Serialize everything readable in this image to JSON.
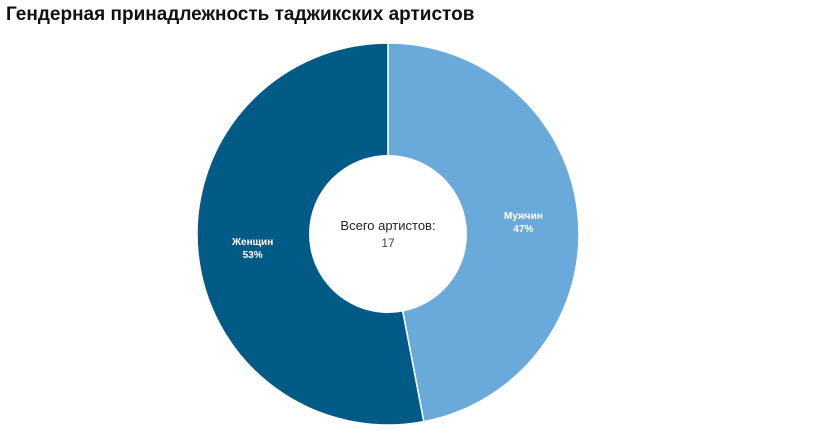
{
  "chart_data": {
    "type": "pie",
    "title": "Гендерная принадлежность таджикских артистов",
    "donut": true,
    "center_label": "Всего артистов:",
    "center_value": "17",
    "slices": [
      {
        "label": "Мужчин",
        "percent_label": "47%",
        "value": 47,
        "color": "#6aaadb"
      },
      {
        "label": "Женщин",
        "percent_label": "53%",
        "value": 53,
        "color": "#015b86"
      }
    ],
    "legend": "none"
  }
}
